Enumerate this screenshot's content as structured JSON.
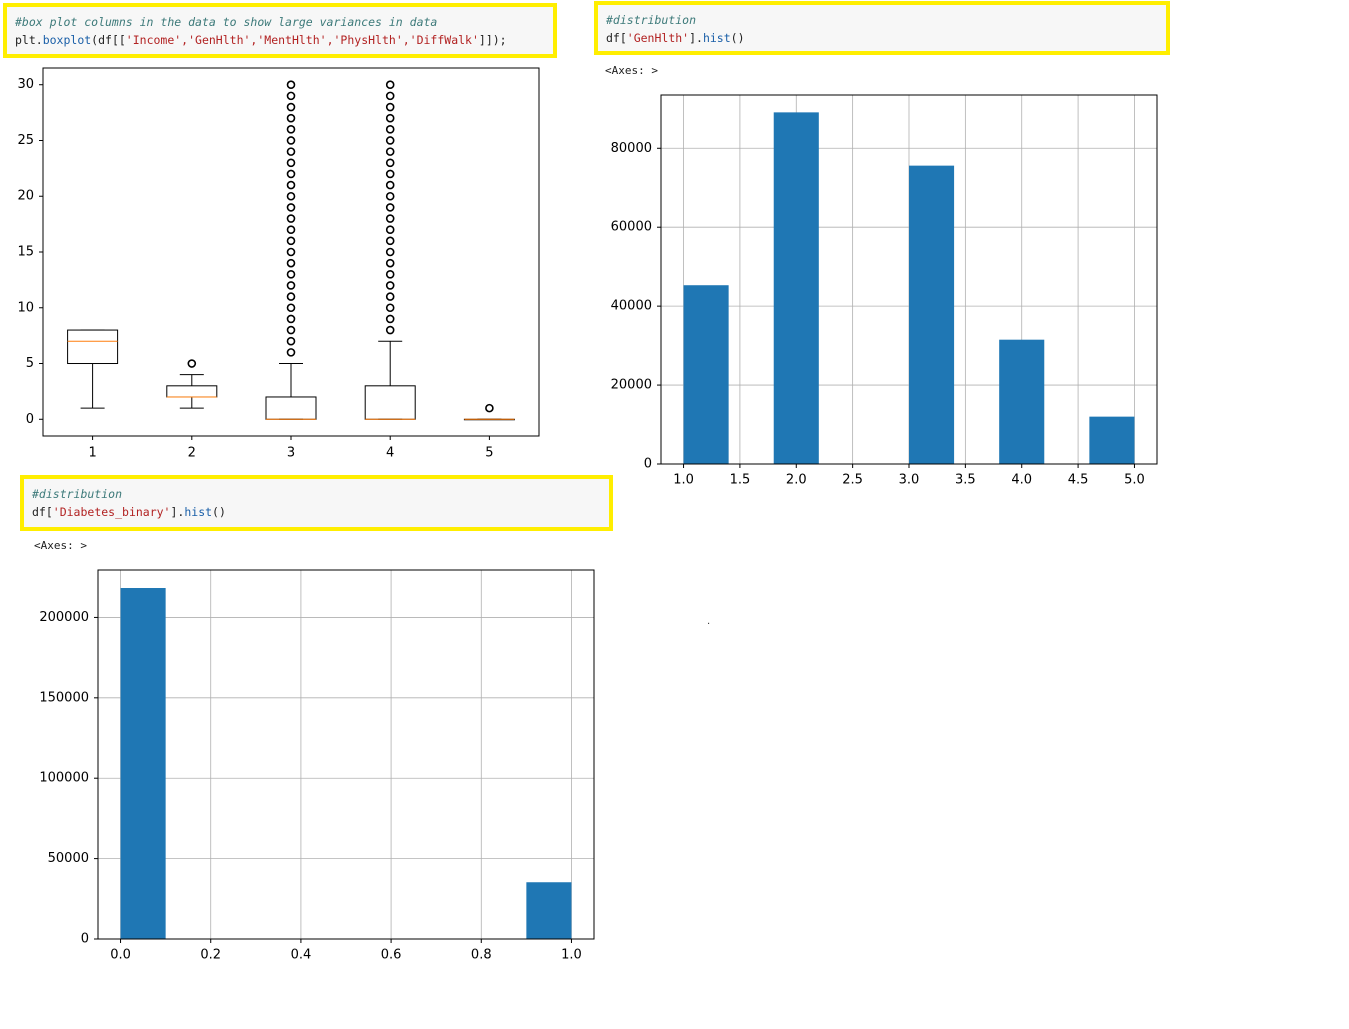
{
  "cells": [
    {
      "id": "boxplot",
      "comment": "#box plot columns in the data to show large variances in data",
      "code_prefix": "plt.",
      "code_fn": "boxplot",
      "code_open": "(df[[",
      "code_args": "'Income','GenHlth','MentHlth','PhysHlth','DiffWalk'",
      "code_close": "]]);"
    },
    {
      "id": "genhlth-hist",
      "comment": "#distribution",
      "code_prefix": "df[",
      "code_str": "'GenHlth'",
      "code_mid": "].",
      "code_fn": "hist",
      "code_close": "()",
      "output": "<Axes: >"
    },
    {
      "id": "diabetes-hist",
      "comment": "#distribution",
      "code_prefix": "df[",
      "code_str": "'Diabetes_binary'",
      "code_mid": "].",
      "code_fn": "hist",
      "code_close": "()",
      "output": "<Axes: >"
    }
  ],
  "stray_mark": ".",
  "colors": {
    "highlight_border": "#ffee00",
    "bar": "#1f77b4",
    "median": "#ff7f0e"
  },
  "chart_data": [
    {
      "type": "boxplot",
      "categories": [
        "1",
        "2",
        "3",
        "4",
        "5"
      ],
      "ylim": [
        -1.5,
        31.5
      ],
      "yticks": [
        0,
        5,
        10,
        15,
        20,
        25,
        30
      ],
      "grid": false,
      "boxes": [
        {
          "whisker_low": 1,
          "q1": 5,
          "median": 7,
          "q3": 8,
          "whisker_high": 8,
          "outliers": []
        },
        {
          "whisker_low": 1,
          "q1": 2,
          "median": 2,
          "q3": 3,
          "whisker_high": 4,
          "outliers": [
            5
          ]
        },
        {
          "whisker_low": 0,
          "q1": 0,
          "median": 0,
          "q3": 2,
          "whisker_high": 5,
          "outliers": [
            6,
            7,
            8,
            9,
            10,
            11,
            12,
            13,
            14,
            15,
            16,
            17,
            18,
            19,
            20,
            21,
            22,
            23,
            24,
            25,
            26,
            27,
            28,
            29,
            30
          ]
        },
        {
          "whisker_low": 0,
          "q1": 0,
          "median": 0,
          "q3": 3,
          "whisker_high": 7,
          "outliers": [
            8,
            9,
            10,
            11,
            12,
            13,
            14,
            15,
            16,
            17,
            18,
            19,
            20,
            21,
            22,
            23,
            24,
            25,
            26,
            27,
            28,
            29,
            30
          ]
        },
        {
          "whisker_low": 0,
          "q1": 0,
          "median": 0,
          "q3": 0,
          "whisker_high": 0,
          "outliers": [
            1
          ]
        }
      ]
    },
    {
      "type": "bar",
      "title": "",
      "xlim": [
        0.8,
        5.2
      ],
      "ylim": [
        0,
        93500
      ],
      "xticks": [
        "1.0",
        "1.5",
        "2.0",
        "2.5",
        "3.0",
        "3.5",
        "4.0",
        "4.5",
        "5.0"
      ],
      "yticks": [
        0,
        20000,
        40000,
        60000,
        80000
      ],
      "grid": true,
      "bin_width": 0.4,
      "bins": [
        {
          "start": 1.0,
          "value": 45300
        },
        {
          "start": 1.8,
          "value": 89100
        },
        {
          "start": 3.0,
          "value": 75600
        },
        {
          "start": 3.8,
          "value": 31500
        },
        {
          "start": 4.6,
          "value": 12000
        }
      ]
    },
    {
      "type": "bar",
      "title": "",
      "xlim": [
        -0.05,
        1.05
      ],
      "ylim": [
        0,
        229500
      ],
      "xticks": [
        "0.0",
        "0.2",
        "0.4",
        "0.6",
        "0.8",
        "1.0"
      ],
      "yticks": [
        0,
        50000,
        100000,
        150000,
        200000
      ],
      "grid": true,
      "bin_width": 0.1,
      "bins": [
        {
          "start": 0.0,
          "value": 218300
        },
        {
          "start": 0.9,
          "value": 35300
        }
      ]
    }
  ]
}
